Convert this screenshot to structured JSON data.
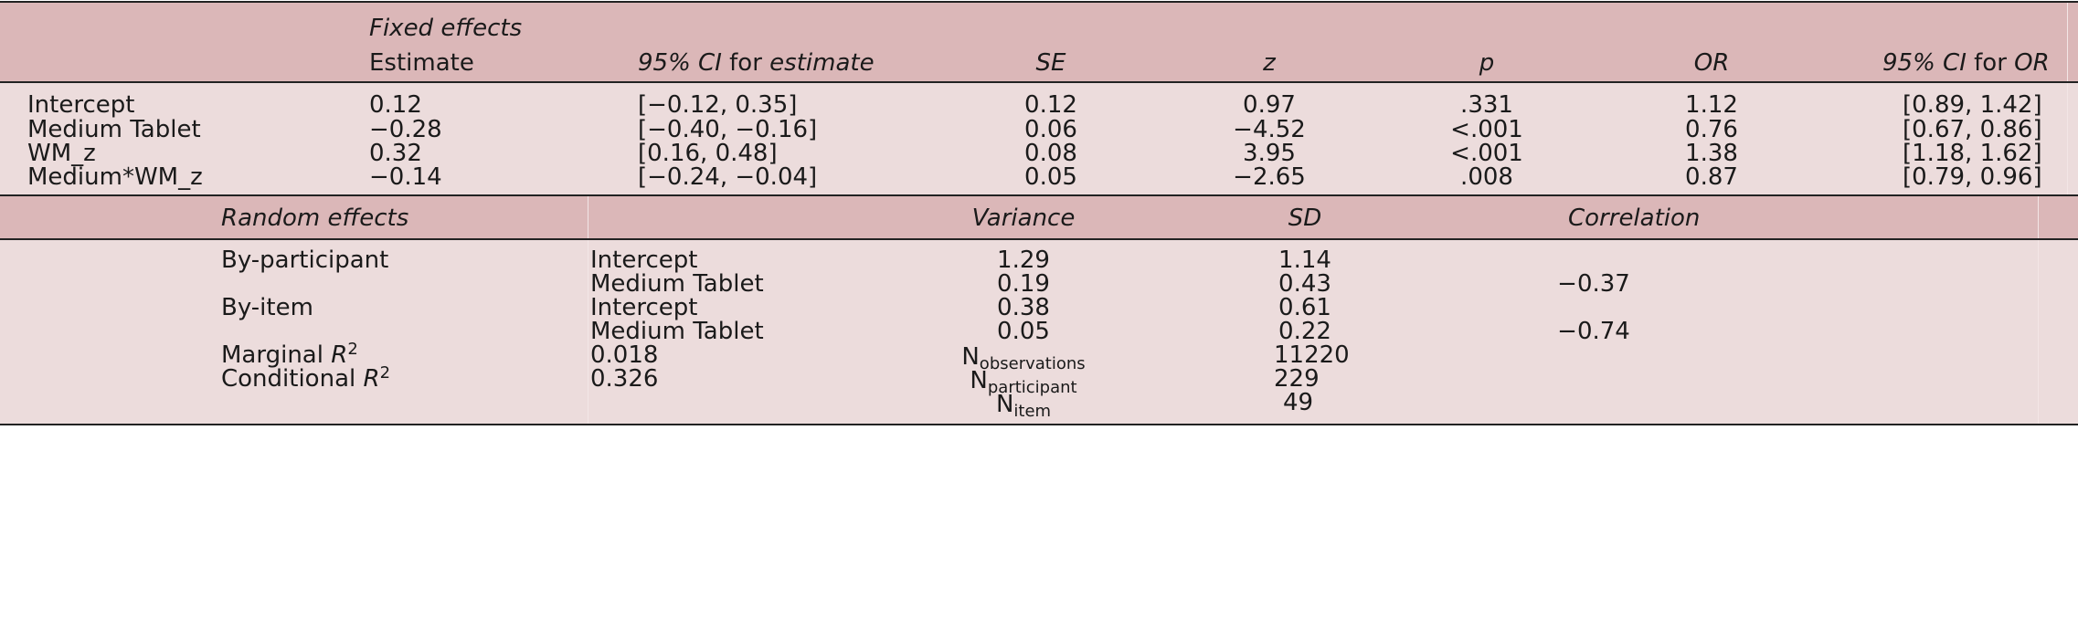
{
  "colors": {
    "header_band": "#dbb7b8",
    "body_band": "#ecdcdc",
    "rule": "#222222"
  },
  "fixed": {
    "section_title": "Fixed effects",
    "headers": {
      "estimate": "Estimate",
      "ci_prefix": "95% CI",
      "ci_mid": " for ",
      "ci_est": "estimate",
      "se": "SE",
      "z": "z",
      "p": "p",
      "or": "OR",
      "ci_or_prefix": "95% CI",
      "ci_or_mid": " for ",
      "ci_or_or": "OR"
    },
    "rows": [
      {
        "term": "Intercept",
        "estimate": "0.12",
        "ci": "[−0.12, 0.35]",
        "se": "0.12",
        "z": "0.97",
        "p": ".331",
        "or": "1.12",
        "ci_or": "[0.89, 1.42]"
      },
      {
        "term": "Medium Tablet",
        "estimate": "−0.28",
        "ci": "[−0.40, −0.16]",
        "se": "0.06",
        "z": "−4.52",
        "p": "<.001",
        "or": "0.76",
        "ci_or": "[0.67, 0.86]"
      },
      {
        "term": "WM_z",
        "estimate": "0.32",
        "ci": "[0.16, 0.48]",
        "se": "0.08",
        "z": "3.95",
        "p": "<.001",
        "or": "1.38",
        "ci_or": "[1.18, 1.62]"
      },
      {
        "term": "Medium*WM_z",
        "estimate": "−0.14",
        "ci": "[−0.24, −0.04]",
        "se": "0.05",
        "z": "−2.65",
        "p": ".008",
        "or": "0.87",
        "ci_or": "[0.79, 0.96]"
      }
    ]
  },
  "random": {
    "headers": {
      "title": "Random effects",
      "variance": "Variance",
      "sd": "SD",
      "correlation": "Correlation"
    },
    "rows": [
      {
        "group": "By-participant",
        "term": "Intercept",
        "variance": "1.29",
        "sd": "1.14",
        "corr": ""
      },
      {
        "group": "",
        "term": "Medium Tablet",
        "variance": "0.19",
        "sd": "0.43",
        "corr": "−0.37"
      },
      {
        "group": "By-item",
        "term": "Intercept",
        "variance": "0.38",
        "sd": "0.61",
        "corr": ""
      },
      {
        "group": "",
        "term": "Medium Tablet",
        "variance": "0.05",
        "sd": "0.22",
        "corr": "−0.74"
      }
    ],
    "fit": {
      "marginal_label": "Marginal ",
      "conditional_label": "Conditional ",
      "r": "R",
      "sq": "2",
      "marginal_value": "0.018",
      "conditional_value": "0.326",
      "n": "N",
      "n_obs_sub": "observations",
      "n_part_sub": "participant",
      "n_item_sub": "item",
      "n_obs": "11220",
      "n_part": "229",
      "n_item": "49"
    }
  }
}
